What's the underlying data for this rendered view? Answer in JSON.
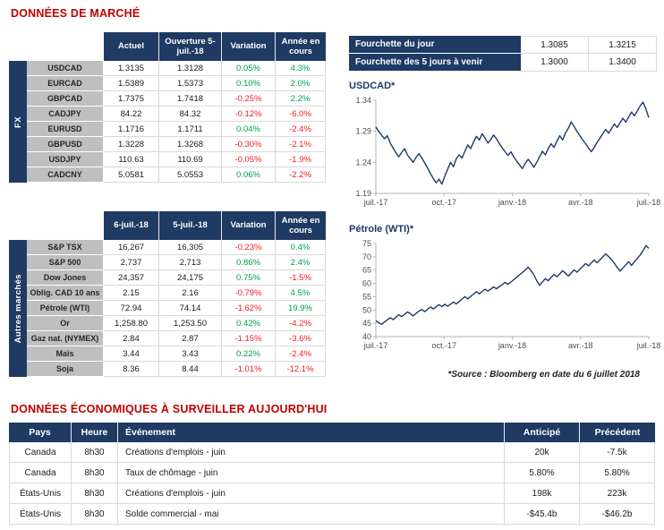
{
  "colors": {
    "navy": "#1f3a63",
    "title_red": "#c00000",
    "green": "#00a14b",
    "red": "#ee1c25",
    "grid": "#d9d9d9",
    "label_gray": "#bfbfbf",
    "tick": "#4d4d4d"
  },
  "titles": {
    "market": "DONNÉES DE MARCHÉ",
    "economic": "DONNÉES ÉCONOMIQUES À SURVEILLER AUJOURD'HUI",
    "source_note": "*Source : Bloomberg en date du 6 juillet 2018"
  },
  "fx_table": {
    "group_label": "FX",
    "headers": [
      "Actuel",
      "Ouverture 5-juil.-18",
      "Variation",
      "Année en cours"
    ],
    "rows": [
      {
        "label": "USDCAD",
        "actuel": "1.3135",
        "ouverture": "1.3128",
        "variation": "0.05%",
        "ytd": "4.3%"
      },
      {
        "label": "EURCAD",
        "actuel": "1.5389",
        "ouverture": "1.5373",
        "variation": "0.10%",
        "ytd": "2.0%"
      },
      {
        "label": "GBPCAD",
        "actuel": "1.7375",
        "ouverture": "1.7418",
        "variation": "-0.25%",
        "ytd": "2.2%"
      },
      {
        "label": "CADJPY",
        "actuel": "84.22",
        "ouverture": "84.32",
        "variation": "-0.12%",
        "ytd": "-6.0%"
      },
      {
        "label": "EURUSD",
        "actuel": "1.1716",
        "ouverture": "1.1711",
        "variation": "0.04%",
        "ytd": "-2.4%"
      },
      {
        "label": "GBPUSD",
        "actuel": "1.3228",
        "ouverture": "1.3268",
        "variation": "-0.30%",
        "ytd": "-2.1%"
      },
      {
        "label": "USDJPY",
        "actuel": "110.63",
        "ouverture": "110.69",
        "variation": "-0.05%",
        "ytd": "-1.9%"
      },
      {
        "label": "CADCNY",
        "actuel": "5.0581",
        "ouverture": "5.0553",
        "variation": "0.06%",
        "ytd": "-2.2%"
      }
    ]
  },
  "markets_table": {
    "group_label": "Autres marchés",
    "headers": [
      "6-juil.-18",
      "5-juil.-18",
      "Variation",
      "Année en cours"
    ],
    "rows": [
      {
        "label": "S&P TSX",
        "actuel": "16,267",
        "ouverture": "16,305",
        "variation": "-0.23%",
        "ytd": "0.4%"
      },
      {
        "label": "S&P 500",
        "actuel": "2,737",
        "ouverture": "2,713",
        "variation": "0.86%",
        "ytd": "2.4%"
      },
      {
        "label": "Dow Jones",
        "actuel": "24,357",
        "ouverture": "24,175",
        "variation": "0.75%",
        "ytd": "-1.5%"
      },
      {
        "label": "Oblig. CAD 10 ans",
        "actuel": "2.15",
        "ouverture": "2.16",
        "variation": "-0.79%",
        "ytd": "4.5%"
      },
      {
        "label": "Pétrole (WTI)",
        "actuel": "72.94",
        "ouverture": "74.14",
        "variation": "-1.62%",
        "ytd": "19.9%"
      },
      {
        "label": "Or",
        "actuel": "1,258.80",
        "ouverture": "1,253.50",
        "variation": "0.42%",
        "ytd": "-4.2%"
      },
      {
        "label": "Gaz nat. (NYMEX)",
        "actuel": "2.84",
        "ouverture": "2.87",
        "variation": "-1.15%",
        "ytd": "-3.6%"
      },
      {
        "label": "Maïs",
        "actuel": "3.44",
        "ouverture": "3.43",
        "variation": "0.22%",
        "ytd": "-2.4%"
      },
      {
        "label": "Soja",
        "actuel": "8.36",
        "ouverture": "8.44",
        "variation": "-1.01%",
        "ytd": "-12.1%"
      }
    ]
  },
  "range_table": {
    "rows": [
      {
        "label": "Fourchette du jour",
        "low": "1.3085",
        "high": "1.3215"
      },
      {
        "label": "Fourchette des 5 jours à venir",
        "low": "1.3000",
        "high": "1.3400"
      }
    ]
  },
  "econ_table": {
    "headers": [
      "Pays",
      "Heure",
      "Événement",
      "Anticipé",
      "Précédent"
    ],
    "rows": [
      {
        "pays": "Canada",
        "heure": "8h30",
        "event": "Créations d'emplois - juin",
        "anticipe": "20k",
        "precedent": "-7.5k"
      },
      {
        "pays": "Canada",
        "heure": "8h30",
        "event": "Taux de chômage - juin",
        "anticipe": "5.80%",
        "precedent": "5.80%"
      },
      {
        "pays": "États-Unis",
        "heure": "8h30",
        "event": "Créations d'emplois - juin",
        "anticipe": "198k",
        "precedent": "223k"
      },
      {
        "pays": "États-Unis",
        "heure": "8h30",
        "event": "Solde commercial - mai",
        "anticipe": "-$45.4b",
        "precedent": "-$46.2b"
      }
    ]
  },
  "chart_data": [
    {
      "type": "line",
      "title": "USDCAD*",
      "ylim": [
        1.19,
        1.34
      ],
      "yticks": [
        "1.19",
        "1.24",
        "1.29",
        "1.34"
      ],
      "xticks": [
        "juil.-17",
        "oct.-17",
        "janv.-18",
        "avr.-18",
        "juil.-18"
      ],
      "legend": "none",
      "grid": "off",
      "line_color": "#1f3a63",
      "values": [
        1.297,
        1.29,
        1.284,
        1.278,
        1.283,
        1.271,
        1.263,
        1.255,
        1.249,
        1.256,
        1.262,
        1.252,
        1.246,
        1.24,
        1.248,
        1.254,
        1.247,
        1.239,
        1.231,
        1.222,
        1.214,
        1.207,
        1.213,
        1.205,
        1.218,
        1.229,
        1.24,
        1.233,
        1.246,
        1.252,
        1.247,
        1.258,
        1.268,
        1.262,
        1.273,
        1.282,
        1.276,
        1.286,
        1.279,
        1.271,
        1.277,
        1.284,
        1.278,
        1.27,
        1.263,
        1.257,
        1.251,
        1.257,
        1.249,
        1.242,
        1.236,
        1.23,
        1.238,
        1.245,
        1.239,
        1.232,
        1.24,
        1.249,
        1.258,
        1.252,
        1.262,
        1.27,
        1.264,
        1.274,
        1.283,
        1.276,
        1.287,
        1.295,
        1.305,
        1.298,
        1.29,
        1.283,
        1.276,
        1.27,
        1.263,
        1.257,
        1.264,
        1.272,
        1.279,
        1.286,
        1.293,
        1.287,
        1.294,
        1.302,
        1.296,
        1.304,
        1.311,
        1.305,
        1.313,
        1.321,
        1.315,
        1.323,
        1.331,
        1.337,
        1.326,
        1.312
      ]
    },
    {
      "type": "line",
      "title": "Pétrole (WTI)*",
      "ylim": [
        40,
        75
      ],
      "yticks": [
        "40",
        "45",
        "50",
        "55",
        "60",
        "65",
        "70",
        "75"
      ],
      "xticks": [
        "juil.-17",
        "oct.-17",
        "janv.-18",
        "avr.-18",
        "juil.-18"
      ],
      "legend": "none",
      "grid": "off",
      "line_color": "#1f3a63",
      "values": [
        46.0,
        45.2,
        44.6,
        45.5,
        46.3,
        47.1,
        46.4,
        47.3,
        48.2,
        47.5,
        48.4,
        49.3,
        48.6,
        47.8,
        48.7,
        49.6,
        50.2,
        49.4,
        50.3,
        51.1,
        50.4,
        51.2,
        52.0,
        51.3,
        52.1,
        51.4,
        52.2,
        53.0,
        52.3,
        53.2,
        54.1,
        55.0,
        54.2,
        55.1,
        56.0,
        56.9,
        56.1,
        57.0,
        57.8,
        57.1,
        57.9,
        58.7,
        58.0,
        58.8,
        59.6,
        60.4,
        59.7,
        60.5,
        61.4,
        62.3,
        63.2,
        64.1,
        65.0,
        66.1,
        64.8,
        63.2,
        61.0,
        59.3,
        60.6,
        61.8,
        61.0,
        62.2,
        63.4,
        62.5,
        63.6,
        64.8,
        63.8,
        62.8,
        63.9,
        65.1,
        64.2,
        65.3,
        66.4,
        67.5,
        66.6,
        67.7,
        68.8,
        67.8,
        68.9,
        70.0,
        71.1,
        70.1,
        69.0,
        67.6,
        66.0,
        64.6,
        65.8,
        67.0,
        68.2,
        66.8,
        68.1,
        69.4,
        70.7,
        72.3,
        74.2,
        73.2
      ]
    }
  ]
}
